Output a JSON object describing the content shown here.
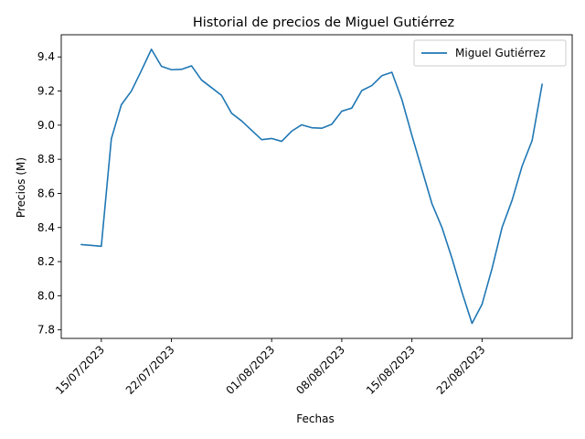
{
  "chart_data": {
    "type": "line",
    "title": "Historial de precios de Miguel Gutiérrez",
    "xlabel": "Fechas",
    "ylabel": "Precios (M)",
    "ylim": [
      7.75,
      9.53
    ],
    "yticks": [
      7.8,
      8.0,
      8.2,
      8.4,
      8.6,
      8.8,
      9.0,
      9.2,
      9.4
    ],
    "ytick_labels": [
      "7.8",
      "8.0",
      "8.2",
      "8.4",
      "8.6",
      "8.8",
      "9.0",
      "9.2",
      "9.4"
    ],
    "xlim": [
      "2023-07-11",
      "2023-08-31"
    ],
    "xticks": [
      "2023-07-15",
      "2023-07-22",
      "2023-08-01",
      "2023-08-08",
      "2023-08-15",
      "2023-08-22"
    ],
    "xtick_labels": [
      "15/07/2023",
      "22/07/2023",
      "01/08/2023",
      "08/08/2023",
      "15/08/2023",
      "22/08/2023"
    ],
    "grid": false,
    "legend_position": "top-right",
    "colors": {
      "series": "#1f77b4"
    },
    "x": [
      "2023-07-13",
      "2023-07-14",
      "2023-07-15",
      "2023-07-16",
      "2023-07-17",
      "2023-07-18",
      "2023-07-19",
      "2023-07-20",
      "2023-07-21",
      "2023-07-22",
      "2023-07-23",
      "2023-07-24",
      "2023-07-25",
      "2023-07-26",
      "2023-07-27",
      "2023-07-28",
      "2023-07-29",
      "2023-07-30",
      "2023-07-31",
      "2023-08-01",
      "2023-08-02",
      "2023-08-03",
      "2023-08-04",
      "2023-08-05",
      "2023-08-06",
      "2023-08-07",
      "2023-08-08",
      "2023-08-09",
      "2023-08-10",
      "2023-08-11",
      "2023-08-12",
      "2023-08-13",
      "2023-08-14",
      "2023-08-15",
      "2023-08-16",
      "2023-08-17",
      "2023-08-18",
      "2023-08-19",
      "2023-08-20",
      "2023-08-21",
      "2023-08-22",
      "2023-08-23",
      "2023-08-24",
      "2023-08-25",
      "2023-08-26",
      "2023-08-27",
      "2023-08-28"
    ],
    "series": [
      {
        "name": "Miguel Gutiérrez",
        "values": [
          8.3,
          8.295,
          8.29,
          8.92,
          9.12,
          9.2,
          9.32,
          9.445,
          9.345,
          9.325,
          9.327,
          9.348,
          9.265,
          9.22,
          9.175,
          9.07,
          9.025,
          8.97,
          8.915,
          8.922,
          8.905,
          8.965,
          9.002,
          8.985,
          8.982,
          9.005,
          9.082,
          9.1,
          9.203,
          9.232,
          9.29,
          9.31,
          9.15,
          8.94,
          8.74,
          8.54,
          8.4,
          8.22,
          8.02,
          7.838,
          7.95,
          8.16,
          8.4,
          8.56,
          8.76,
          8.91,
          9.24
        ]
      }
    ]
  }
}
